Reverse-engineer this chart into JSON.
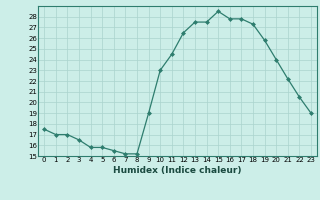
{
  "x": [
    0,
    1,
    2,
    3,
    4,
    5,
    6,
    7,
    8,
    9,
    10,
    11,
    12,
    13,
    14,
    15,
    16,
    17,
    18,
    19,
    20,
    21,
    22,
    23
  ],
  "y": [
    17.5,
    17.0,
    17.0,
    16.5,
    15.8,
    15.8,
    15.5,
    15.2,
    15.2,
    19.0,
    23.0,
    24.5,
    26.5,
    27.5,
    27.5,
    28.5,
    27.8,
    27.8,
    27.3,
    25.8,
    24.0,
    22.2,
    20.5,
    19.0
  ],
  "line_color": "#2e7d6e",
  "marker": "D",
  "marker_size": 2.0,
  "bg_color": "#cceee8",
  "grid_color": "#aad4ce",
  "xlabel": "Humidex (Indice chaleur)",
  "ylim": [
    15,
    29
  ],
  "xlim": [
    -0.5,
    23.5
  ],
  "yticks": [
    15,
    16,
    17,
    18,
    19,
    20,
    21,
    22,
    23,
    24,
    25,
    26,
    27,
    28
  ],
  "xticks": [
    0,
    1,
    2,
    3,
    4,
    5,
    6,
    7,
    8,
    9,
    10,
    11,
    12,
    13,
    14,
    15,
    16,
    17,
    18,
    19,
    20,
    21,
    22,
    23
  ],
  "xtick_labels": [
    "0",
    "1",
    "2",
    "3",
    "4",
    "5",
    "6",
    "7",
    "8",
    "9",
    "10",
    "11",
    "12",
    "13",
    "14",
    "15",
    "16",
    "17",
    "18",
    "19",
    "20",
    "21",
    "22",
    "23"
  ]
}
